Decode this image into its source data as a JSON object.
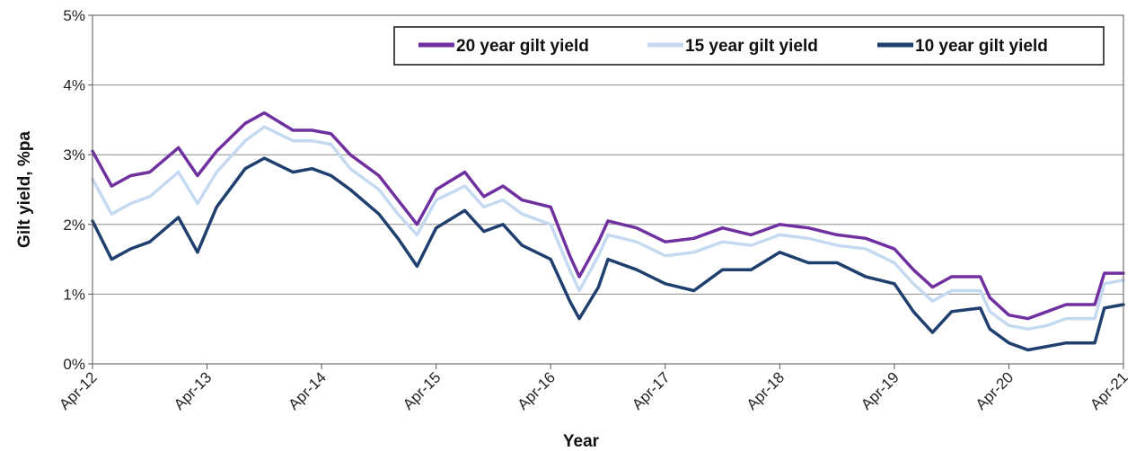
{
  "chart_data": {
    "type": "line",
    "xlabel": "Year",
    "ylabel": "Gilt yield, %pa",
    "ylim": [
      0,
      5
    ],
    "y_tick_labels": [
      "0%",
      "1%",
      "2%",
      "3%",
      "4%",
      "5%"
    ],
    "x_tick_labels": [
      "Apr-12",
      "Apr-13",
      "Apr-14",
      "Apr-15",
      "Apr-16",
      "Apr-17",
      "Apr-18",
      "Apr-19",
      "Apr-20",
      "Apr-21"
    ],
    "grid": true,
    "legend_position": "top-right",
    "series": [
      {
        "name": "20 year gilt yield",
        "color": "#7030a0",
        "x": [
          "Apr-12",
          "Jun-12",
          "Aug-12",
          "Oct-12",
          "Jan-13",
          "Mar-13",
          "May-13",
          "Aug-13",
          "Oct-13",
          "Jan-14",
          "Mar-14",
          "May-14",
          "Jul-14",
          "Oct-14",
          "Dec-14",
          "Feb-15",
          "Apr-15",
          "Jul-15",
          "Sep-15",
          "Nov-15",
          "Jan-16",
          "Apr-16",
          "Jun-16",
          "Jul-16",
          "Sep-16",
          "Oct-16",
          "Jan-17",
          "Apr-17",
          "Jul-17",
          "Oct-17",
          "Jan-18",
          "Apr-18",
          "Jul-18",
          "Oct-18",
          "Jan-19",
          "Apr-19",
          "Jun-19",
          "Aug-19",
          "Oct-19",
          "Jan-20",
          "Feb-20",
          "Apr-20",
          "Jun-20",
          "Aug-20",
          "Oct-20",
          "Jan-21",
          "Feb-21",
          "Apr-21"
        ],
        "values": [
          3.05,
          2.55,
          2.7,
          2.75,
          3.1,
          2.7,
          3.05,
          3.45,
          3.6,
          3.35,
          3.35,
          3.3,
          3.0,
          2.7,
          2.35,
          2.0,
          2.5,
          2.75,
          2.4,
          2.55,
          2.35,
          2.25,
          1.55,
          1.25,
          1.75,
          2.05,
          1.95,
          1.75,
          1.8,
          1.95,
          1.85,
          2.0,
          1.95,
          1.85,
          1.8,
          1.65,
          1.35,
          1.1,
          1.25,
          1.25,
          0.95,
          0.7,
          0.65,
          0.75,
          0.85,
          0.85,
          1.3,
          1.3
        ]
      },
      {
        "name": "15 year gilt yield",
        "color": "#c5d9f1",
        "x": [
          "Apr-12",
          "Jun-12",
          "Aug-12",
          "Oct-12",
          "Jan-13",
          "Mar-13",
          "May-13",
          "Aug-13",
          "Oct-13",
          "Jan-14",
          "Mar-14",
          "May-14",
          "Jul-14",
          "Oct-14",
          "Dec-14",
          "Feb-15",
          "Apr-15",
          "Jul-15",
          "Sep-15",
          "Nov-15",
          "Jan-16",
          "Apr-16",
          "Jun-16",
          "Jul-16",
          "Sep-16",
          "Oct-16",
          "Jan-17",
          "Apr-17",
          "Jul-17",
          "Oct-17",
          "Jan-18",
          "Apr-18",
          "Jul-18",
          "Oct-18",
          "Jan-19",
          "Apr-19",
          "Jun-19",
          "Aug-19",
          "Oct-19",
          "Jan-20",
          "Feb-20",
          "Apr-20",
          "Jun-20",
          "Aug-20",
          "Oct-20",
          "Jan-21",
          "Feb-21",
          "Apr-21"
        ],
        "values": [
          2.65,
          2.15,
          2.3,
          2.4,
          2.75,
          2.3,
          2.75,
          3.2,
          3.4,
          3.2,
          3.2,
          3.15,
          2.8,
          2.5,
          2.15,
          1.85,
          2.35,
          2.55,
          2.25,
          2.35,
          2.15,
          2.0,
          1.35,
          1.05,
          1.55,
          1.85,
          1.75,
          1.55,
          1.6,
          1.75,
          1.7,
          1.85,
          1.8,
          1.7,
          1.65,
          1.45,
          1.15,
          0.9,
          1.05,
          1.05,
          0.75,
          0.55,
          0.5,
          0.55,
          0.65,
          0.65,
          1.15,
          1.2
        ]
      },
      {
        "name": "10 year gilt yield",
        "color": "#1f3f6e",
        "x": [
          "Apr-12",
          "Jun-12",
          "Aug-12",
          "Oct-12",
          "Jan-13",
          "Mar-13",
          "May-13",
          "Aug-13",
          "Oct-13",
          "Jan-14",
          "Mar-14",
          "May-14",
          "Jul-14",
          "Oct-14",
          "Dec-14",
          "Feb-15",
          "Apr-15",
          "Jul-15",
          "Sep-15",
          "Nov-15",
          "Jan-16",
          "Apr-16",
          "Jun-16",
          "Jul-16",
          "Sep-16",
          "Oct-16",
          "Jan-17",
          "Apr-17",
          "Jul-17",
          "Oct-17",
          "Jan-18",
          "Apr-18",
          "Jul-18",
          "Oct-18",
          "Jan-19",
          "Apr-19",
          "Jun-19",
          "Aug-19",
          "Oct-19",
          "Jan-20",
          "Feb-20",
          "Apr-20",
          "Jun-20",
          "Aug-20",
          "Oct-20",
          "Jan-21",
          "Feb-21",
          "Apr-21"
        ],
        "values": [
          2.05,
          1.5,
          1.65,
          1.75,
          2.1,
          1.6,
          2.25,
          2.8,
          2.95,
          2.75,
          2.8,
          2.7,
          2.5,
          2.15,
          1.8,
          1.4,
          1.95,
          2.2,
          1.9,
          2.0,
          1.7,
          1.5,
          0.9,
          0.65,
          1.1,
          1.5,
          1.35,
          1.15,
          1.05,
          1.35,
          1.35,
          1.6,
          1.45,
          1.45,
          1.25,
          1.15,
          0.75,
          0.45,
          0.75,
          0.8,
          0.5,
          0.3,
          0.2,
          0.25,
          0.3,
          0.3,
          0.8,
          0.85
        ]
      }
    ]
  }
}
